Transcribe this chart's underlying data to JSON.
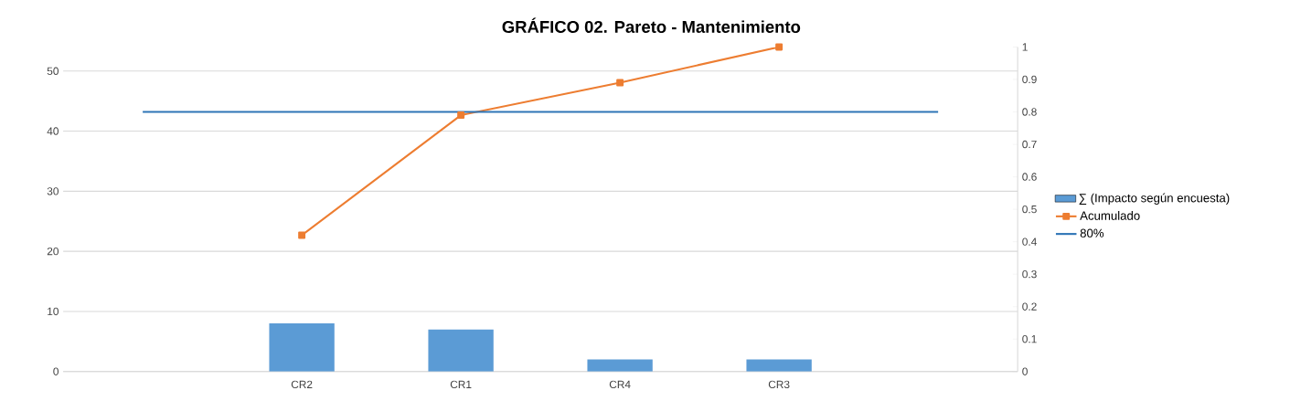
{
  "chart_data": {
    "type": "bar",
    "title": "GRÁFICO 02. Pareto - Mantenimiento",
    "categories": [
      null,
      "CR2",
      "CR1",
      "CR4",
      "CR3",
      null
    ],
    "series": [
      {
        "name": "∑ (Impacto según encuesta)",
        "color": "#5b9bd5",
        "values": [
          null,
          8,
          7,
          2,
          2,
          null
        ]
      },
      {
        "name": "Acumulado",
        "type": "line",
        "axis": "y2",
        "color": "#ed7d31",
        "marker": "square",
        "values": [
          null,
          0.42,
          0.79,
          0.89,
          1,
          null
        ]
      },
      {
        "name": "80%",
        "type": "line",
        "axis": "y2",
        "color": "#2e75b6",
        "marker": "none",
        "values": [
          0.8,
          0.8,
          0.8,
          0.8,
          0.8,
          0.8
        ]
      }
    ],
    "ylim": [
      0,
      54
    ],
    "yticks": [
      0,
      10,
      20,
      30,
      40,
      50
    ],
    "y2lim": [
      0,
      1
    ],
    "y2ticks": [
      0,
      0.1,
      0.2,
      0.3,
      0.4,
      0.5,
      0.6,
      0.7,
      0.8,
      0.9,
      1
    ],
    "grid": "y",
    "legend": "right"
  }
}
